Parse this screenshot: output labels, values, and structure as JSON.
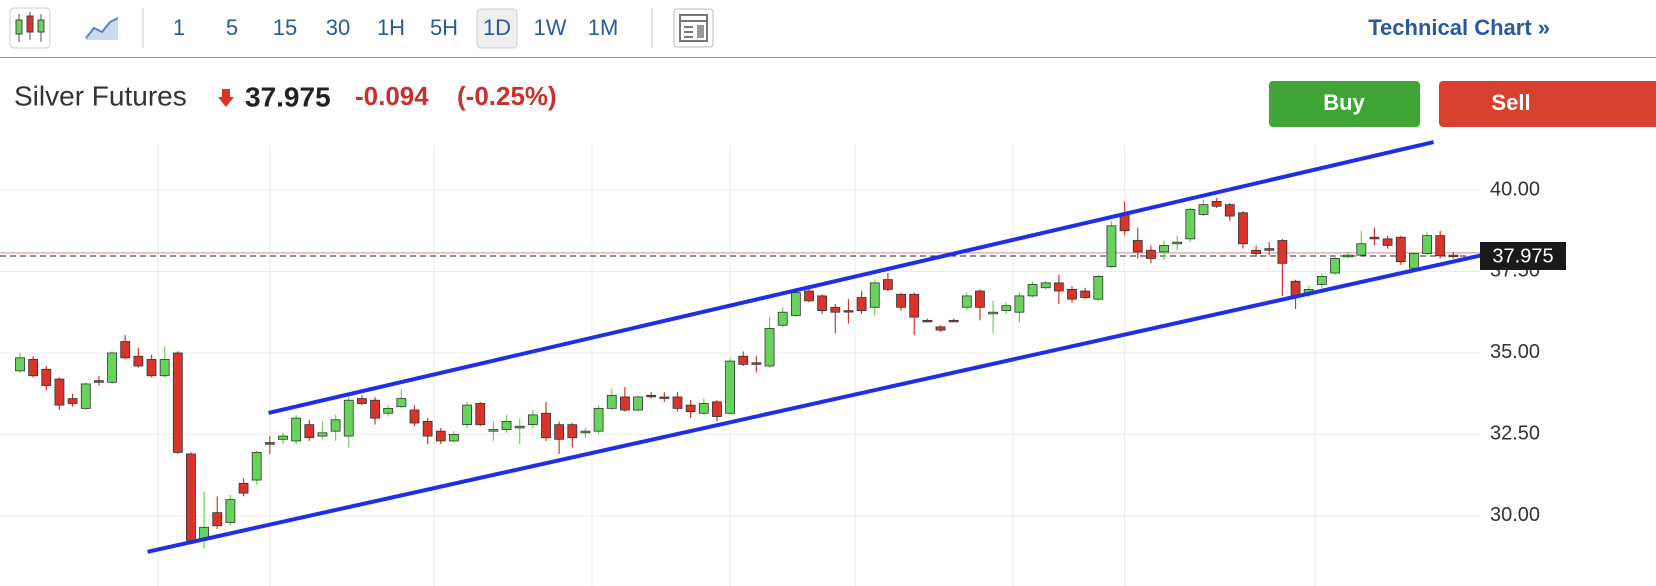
{
  "toolbar": {
    "intervals": [
      "1",
      "5",
      "15",
      "30",
      "1H",
      "5H",
      "1D",
      "1W",
      "1M"
    ],
    "selected": 6,
    "link": "Technical Chart »"
  },
  "quote": {
    "name": "Silver Futures",
    "change": "-0.094",
    "change_percent": "(-0.25%)"
  },
  "buttons": {
    "buy": "Buy",
    "sell": "Sell"
  },
  "chart_data": {
    "type": "candlestick",
    "last_price": 37.975,
    "reference_line": 38.069,
    "ylim": [
      27.85,
      41.38
    ],
    "yticks": [
      {
        "value": 30,
        "label": "30.00"
      },
      {
        "value": 32.5,
        "label": "32.50"
      },
      {
        "value": 35,
        "label": "35.00"
      },
      {
        "value": 37.5,
        "label": "37.50"
      },
      {
        "value": 40,
        "label": "40.00"
      }
    ],
    "xgrid": [
      10.5,
      19,
      31.5,
      43.5,
      54,
      63.5,
      75.5,
      84,
      98.5
    ],
    "up_color": "#66d45a",
    "down_color": "#d8342b",
    "trendlines": [
      {
        "color": "#1f2fe6",
        "x": [
          18.9,
          107.5
        ],
        "y": [
          33.16,
          41.47
        ]
      },
      {
        "color": "#1f2fe6",
        "x": [
          9.7,
          112.3
        ],
        "y": [
          28.9,
          38.1
        ]
      }
    ],
    "ohlc": [
      [
        34.45,
        35.0,
        34.4,
        34.85
      ],
      [
        34.8,
        34.9,
        34.25,
        34.3
      ],
      [
        34.5,
        34.6,
        33.85,
        34.0
      ],
      [
        34.2,
        34.25,
        33.25,
        33.4
      ],
      [
        33.6,
        33.75,
        33.35,
        33.45
      ],
      [
        33.3,
        34.1,
        33.25,
        34.05
      ],
      [
        34.15,
        34.3,
        34.0,
        34.1
      ],
      [
        34.1,
        35.05,
        34.05,
        35.0
      ],
      [
        35.35,
        35.55,
        34.8,
        34.85
      ],
      [
        34.9,
        35.15,
        34.55,
        34.6
      ],
      [
        34.8,
        34.95,
        34.25,
        34.3
      ],
      [
        34.3,
        35.2,
        34.25,
        34.8
      ],
      [
        35.0,
        35.05,
        31.9,
        31.95
      ],
      [
        31.9,
        31.95,
        29.2,
        29.25
      ],
      [
        29.3,
        30.75,
        29.0,
        29.65
      ],
      [
        30.1,
        30.6,
        29.6,
        29.7
      ],
      [
        29.8,
        30.65,
        29.7,
        30.5
      ],
      [
        31.0,
        31.15,
        30.6,
        30.7
      ],
      [
        31.1,
        32.0,
        30.95,
        31.95
      ],
      [
        32.25,
        32.45,
        31.9,
        32.2
      ],
      [
        32.35,
        32.55,
        32.2,
        32.45
      ],
      [
        32.3,
        33.1,
        32.2,
        33.0
      ],
      [
        32.8,
        32.95,
        32.3,
        32.4
      ],
      [
        32.45,
        32.9,
        32.35,
        32.55
      ],
      [
        32.6,
        33.1,
        32.3,
        32.95
      ],
      [
        32.45,
        33.7,
        32.1,
        33.55
      ],
      [
        33.6,
        33.7,
        33.4,
        33.45
      ],
      [
        33.55,
        33.65,
        32.8,
        33.0
      ],
      [
        33.15,
        33.4,
        33.05,
        33.3
      ],
      [
        33.35,
        33.9,
        33.3,
        33.6
      ],
      [
        33.25,
        33.4,
        32.75,
        32.85
      ],
      [
        32.9,
        33.0,
        32.2,
        32.45
      ],
      [
        32.6,
        32.7,
        32.2,
        32.3
      ],
      [
        32.3,
        32.6,
        32.25,
        32.5
      ],
      [
        32.8,
        33.5,
        32.7,
        33.4
      ],
      [
        33.45,
        33.5,
        32.75,
        32.8
      ],
      [
        32.6,
        32.9,
        32.3,
        32.65
      ],
      [
        32.65,
        33.1,
        32.55,
        32.9
      ],
      [
        32.7,
        33.0,
        32.2,
        32.75
      ],
      [
        32.8,
        33.25,
        32.7,
        33.1
      ],
      [
        33.15,
        33.5,
        32.3,
        32.4
      ],
      [
        32.8,
        32.9,
        31.9,
        32.35
      ],
      [
        32.8,
        32.85,
        32.1,
        32.4
      ],
      [
        32.55,
        32.7,
        32.4,
        32.6
      ],
      [
        32.6,
        33.4,
        32.5,
        33.3
      ],
      [
        33.3,
        33.9,
        33.25,
        33.7
      ],
      [
        33.65,
        33.95,
        33.2,
        33.25
      ],
      [
        33.25,
        33.7,
        33.2,
        33.65
      ],
      [
        33.7,
        33.8,
        33.6,
        33.7
      ],
      [
        33.65,
        33.8,
        33.5,
        33.65
      ],
      [
        33.65,
        33.8,
        33.2,
        33.3
      ],
      [
        33.4,
        33.55,
        33.0,
        33.2
      ],
      [
        33.15,
        33.6,
        33.1,
        33.45
      ],
      [
        33.5,
        33.55,
        32.9,
        33.05
      ],
      [
        33.15,
        34.85,
        33.1,
        34.75
      ],
      [
        34.9,
        35.05,
        34.6,
        34.65
      ],
      [
        34.7,
        34.9,
        34.4,
        34.65
      ],
      [
        34.6,
        36.1,
        34.55,
        35.75
      ],
      [
        35.85,
        36.4,
        35.8,
        36.25
      ],
      [
        36.15,
        36.95,
        36.1,
        36.85
      ],
      [
        36.9,
        37.0,
        36.55,
        36.6
      ],
      [
        36.75,
        36.8,
        36.2,
        36.3
      ],
      [
        36.4,
        36.5,
        35.6,
        36.25
      ],
      [
        36.3,
        36.65,
        35.9,
        36.3
      ],
      [
        36.7,
        36.9,
        36.2,
        36.3
      ],
      [
        36.4,
        37.25,
        36.15,
        37.15
      ],
      [
        37.25,
        37.45,
        36.9,
        36.95
      ],
      [
        36.8,
        36.85,
        36.3,
        36.4
      ],
      [
        36.8,
        36.85,
        35.55,
        36.1
      ],
      [
        36.0,
        36.05,
        35.95,
        36.0
      ],
      [
        35.8,
        35.85,
        35.65,
        35.7
      ],
      [
        36.0,
        36.05,
        35.95,
        36.0
      ],
      [
        36.4,
        36.85,
        36.3,
        36.75
      ],
      [
        36.9,
        36.95,
        36.0,
        36.4
      ],
      [
        36.2,
        36.6,
        35.6,
        36.25
      ],
      [
        36.3,
        36.55,
        36.2,
        36.45
      ],
      [
        36.25,
        36.85,
        35.95,
        36.75
      ],
      [
        36.75,
        37.2,
        36.7,
        37.1
      ],
      [
        37.0,
        37.2,
        36.95,
        37.15
      ],
      [
        37.15,
        37.4,
        36.5,
        36.9
      ],
      [
        36.95,
        37.05,
        36.55,
        36.65
      ],
      [
        36.9,
        37.0,
        36.65,
        36.7
      ],
      [
        36.65,
        37.4,
        36.6,
        37.35
      ],
      [
        37.65,
        39.05,
        37.6,
        38.9
      ],
      [
        39.25,
        39.65,
        38.6,
        38.75
      ],
      [
        38.45,
        38.85,
        37.9,
        38.1
      ],
      [
        38.15,
        38.3,
        37.75,
        37.9
      ],
      [
        38.1,
        38.45,
        37.85,
        38.3
      ],
      [
        38.35,
        38.6,
        38.15,
        38.4
      ],
      [
        38.5,
        39.45,
        38.4,
        39.4
      ],
      [
        39.25,
        39.7,
        39.2,
        39.55
      ],
      [
        39.65,
        39.75,
        39.45,
        39.5
      ],
      [
        39.55,
        39.6,
        39.05,
        39.2
      ],
      [
        39.3,
        39.35,
        38.2,
        38.35
      ],
      [
        38.15,
        38.3,
        37.95,
        38.05
      ],
      [
        38.2,
        38.4,
        38.0,
        38.15
      ],
      [
        38.45,
        38.5,
        36.75,
        37.75
      ],
      [
        37.2,
        37.25,
        36.35,
        36.75
      ],
      [
        36.8,
        37.05,
        36.7,
        36.95
      ],
      [
        37.1,
        37.45,
        37.0,
        37.35
      ],
      [
        37.45,
        38.0,
        37.4,
        37.9
      ],
      [
        37.95,
        38.1,
        37.9,
        38.0
      ],
      [
        38.0,
        38.75,
        37.95,
        38.35
      ],
      [
        38.55,
        38.85,
        38.3,
        38.5
      ],
      [
        38.5,
        38.6,
        38.2,
        38.3
      ],
      [
        38.55,
        38.6,
        37.7,
        37.8
      ],
      [
        37.6,
        38.1,
        37.55,
        38.05
      ],
      [
        38.05,
        38.7,
        38.0,
        38.6
      ],
      [
        38.6,
        38.75,
        37.9,
        37.98
      ],
      [
        38.0,
        38.1,
        37.9,
        37.975
      ]
    ]
  }
}
